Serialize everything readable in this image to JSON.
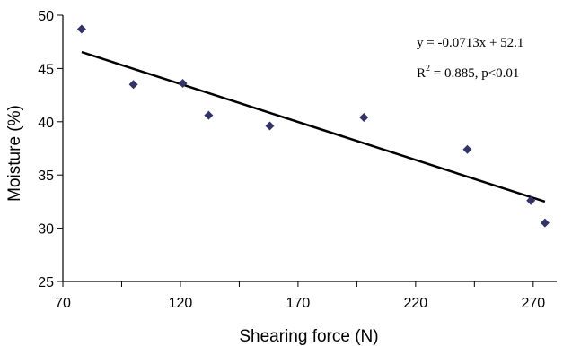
{
  "chart_data": {
    "type": "scatter",
    "xlabel": "Shearing force (N)",
    "ylabel": "Moisture (%)",
    "xlim": [
      70,
      280
    ],
    "ylim": [
      25,
      50
    ],
    "x_ticks": [
      "70",
      "120",
      "170",
      "220",
      "270"
    ],
    "y_ticks": [
      "25",
      "30",
      "35",
      "40",
      "45",
      "50"
    ],
    "series": [
      {
        "points": [
          {
            "x": 78,
            "y": 48.7
          },
          {
            "x": 100,
            "y": 43.5
          },
          {
            "x": 121,
            "y": 43.6
          },
          {
            "x": 132,
            "y": 40.6
          },
          {
            "x": 158,
            "y": 39.6
          },
          {
            "x": 198,
            "y": 40.4
          },
          {
            "x": 242,
            "y": 37.4
          },
          {
            "x": 269,
            "y": 32.6
          },
          {
            "x": 275,
            "y": 30.5
          }
        ],
        "marker_color": "#33336b"
      }
    ],
    "trendline": {
      "slope": -0.0713,
      "intercept": 52.1,
      "x_range": [
        78,
        275
      ]
    },
    "annotations": {
      "equation": "y = -0.0713x + 52.1",
      "r2_prefix": "R",
      "r2_sup": "2",
      "r2_rest": " = 0.885, p<0.01"
    },
    "grid": false,
    "legend": "none"
  }
}
